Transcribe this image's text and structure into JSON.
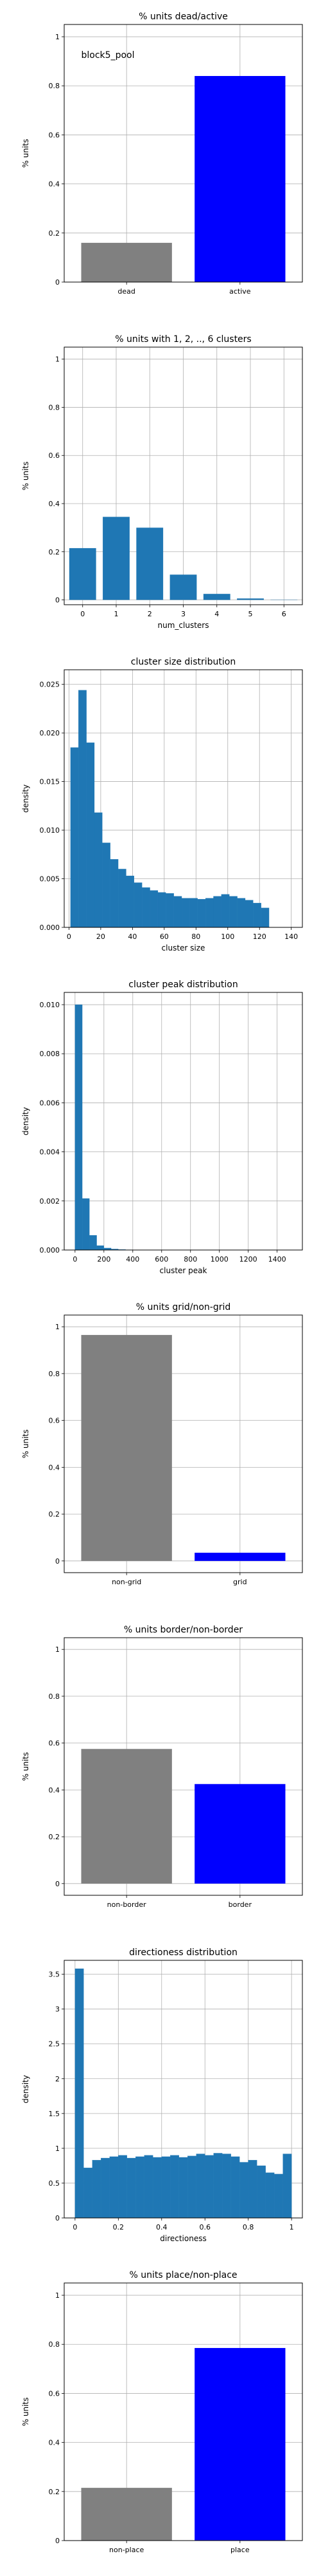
{
  "colors": {
    "dead": "#808080",
    "active": "#0000ff",
    "hist": "#1f77b4",
    "grid": "#b0b0b0"
  },
  "chart_data": [
    {
      "type": "bar",
      "title": "% units dead/active",
      "annotation": "block5_pool",
      "xlabel": "",
      "ylabel": "% units",
      "categories": [
        "dead",
        "active"
      ],
      "values": [
        0.16,
        0.84
      ],
      "colors": [
        "#808080",
        "#0000ff"
      ],
      "ylim": [
        0,
        1.05
      ],
      "yticks": [
        0.0,
        0.2,
        0.4,
        0.6,
        0.8,
        1.0
      ],
      "grid": true
    },
    {
      "type": "bar",
      "title": "% units with 1, 2, .., 6 clusters",
      "xlabel": "num_clusters",
      "ylabel": "% units",
      "categories": [
        "0",
        "1",
        "2",
        "3",
        "4",
        "5",
        "6"
      ],
      "values": [
        0.215,
        0.345,
        0.3,
        0.105,
        0.025,
        0.006,
        0.001
      ],
      "colors": [
        "#1f77b4"
      ],
      "ylim": [
        -0.02,
        1.05
      ],
      "yticks": [
        0.0,
        0.2,
        0.4,
        0.6,
        0.8,
        1.0
      ],
      "grid": true
    },
    {
      "type": "histogram",
      "title": "cluster size distribution",
      "xlabel": "cluster size",
      "ylabel": "density",
      "bin_start": 1,
      "bin_width": 5,
      "values": [
        0.0185,
        0.0244,
        0.019,
        0.0118,
        0.0087,
        0.007,
        0.006,
        0.0053,
        0.0046,
        0.0041,
        0.0038,
        0.0036,
        0.0035,
        0.0032,
        0.003,
        0.003,
        0.0029,
        0.003,
        0.0032,
        0.0034,
        0.0032,
        0.003,
        0.0028,
        0.0025,
        0.002
      ],
      "xlim": [
        -3,
        147
      ],
      "ylim": [
        0,
        0.0265
      ],
      "xticks": [
        0,
        20,
        40,
        60,
        80,
        100,
        120,
        140
      ],
      "yticks": [
        0.0,
        0.005,
        0.01,
        0.015,
        0.02,
        0.025
      ],
      "yticklabels": [
        "0.000",
        "0.005",
        "0.010",
        "0.015",
        "0.020",
        "0.025"
      ],
      "grid": true
    },
    {
      "type": "histogram",
      "title": "cluster peak distribution",
      "xlabel": "cluster peak",
      "ylabel": "density",
      "bin_start": 0,
      "bin_width": 50,
      "values": [
        0.01,
        0.0021,
        0.0006,
        0.00018,
        8e-05,
        4e-05,
        2e-05,
        1e-05,
        5e-06
      ],
      "xlim": [
        -75,
        1575
      ],
      "ylim": [
        0,
        0.0105
      ],
      "xticks": [
        0,
        200,
        400,
        600,
        800,
        1000,
        1200,
        1400
      ],
      "yticks": [
        0.0,
        0.002,
        0.004,
        0.006,
        0.008,
        0.01
      ],
      "yticklabels": [
        "0.000",
        "0.002",
        "0.004",
        "0.006",
        "0.008",
        "0.010"
      ],
      "grid": true
    },
    {
      "type": "bar",
      "title": "% units grid/non-grid",
      "xlabel": "",
      "ylabel": "% units",
      "categories": [
        "non-grid",
        "grid"
      ],
      "values": [
        0.965,
        0.035
      ],
      "colors": [
        "#808080",
        "#0000ff"
      ],
      "ylim": [
        -0.05,
        1.05
      ],
      "yticks": [
        0.0,
        0.2,
        0.4,
        0.6,
        0.8,
        1.0
      ],
      "grid": true
    },
    {
      "type": "bar",
      "title": "% units border/non-border",
      "xlabel": "",
      "ylabel": "% units",
      "categories": [
        "non-border",
        "border"
      ],
      "values": [
        0.575,
        0.425
      ],
      "colors": [
        "#808080",
        "#0000ff"
      ],
      "ylim": [
        -0.05,
        1.05
      ],
      "yticks": [
        0.0,
        0.2,
        0.4,
        0.6,
        0.8,
        1.0
      ],
      "grid": true
    },
    {
      "type": "histogram",
      "title": "directioness distribution",
      "xlabel": "directioness",
      "ylabel": "density",
      "bin_start": 0,
      "bin_width": 0.04,
      "values": [
        3.58,
        0.72,
        0.83,
        0.86,
        0.88,
        0.9,
        0.86,
        0.88,
        0.9,
        0.87,
        0.88,
        0.9,
        0.87,
        0.89,
        0.92,
        0.9,
        0.93,
        0.92,
        0.88,
        0.8,
        0.83,
        0.75,
        0.65,
        0.63,
        0.92
      ],
      "xlim": [
        -0.05,
        1.05
      ],
      "ylim": [
        0,
        3.7
      ],
      "xticks": [
        0.0,
        0.2,
        0.4,
        0.6,
        0.8,
        1.0
      ],
      "yticks": [
        0.0,
        0.5,
        1.0,
        1.5,
        2.0,
        2.5,
        3.0,
        3.5
      ],
      "grid": true
    },
    {
      "type": "bar",
      "title": "% units place/non-place",
      "xlabel": "",
      "ylabel": "% units",
      "categories": [
        "non-place",
        "place"
      ],
      "values": [
        0.215,
        0.785
      ],
      "colors": [
        "#808080",
        "#0000ff"
      ],
      "ylim": [
        0,
        1.05
      ],
      "yticks": [
        0.0,
        0.2,
        0.4,
        0.6,
        0.8,
        1.0
      ],
      "grid": true
    }
  ]
}
